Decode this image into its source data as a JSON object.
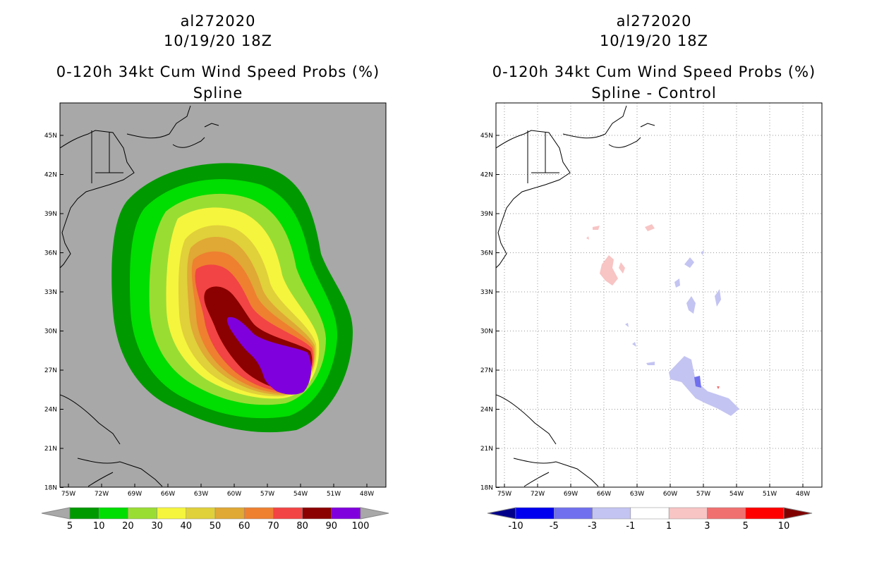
{
  "panels": [
    {
      "storm_id": "al272020",
      "datetime": "10/19/20 18Z",
      "product": "0-120h 34kt Cum Wind Speed Probs (%)",
      "subtitle": "Spline",
      "background_color": "#a8a8a8",
      "colorbar": {
        "colors": [
          "#009900",
          "#00dd00",
          "#99dd33",
          "#f5f53d",
          "#e0d03a",
          "#e0a834",
          "#ee8030",
          "#f24444",
          "#8b0000",
          "#8000dd"
        ],
        "labels": [
          "5",
          "10",
          "20",
          "30",
          "40",
          "50",
          "60",
          "70",
          "80",
          "90",
          "100"
        ],
        "under_color": "#a8a8a8",
        "over_color": "#a8a8a8"
      }
    },
    {
      "storm_id": "al272020",
      "datetime": "10/19/20 18Z",
      "product": "0-120h 34kt Cum Wind Speed Probs (%)",
      "subtitle": "Spline - Control",
      "background_color": "#ffffff",
      "colorbar": {
        "colors": [
          "#0000ee",
          "#7070ee",
          "#c4c4f2",
          "#ffffff",
          "#f8c4c4",
          "#f07070",
          "#ff0000"
        ],
        "labels": [
          "-10",
          "-5",
          "-3",
          "-1",
          "1",
          "3",
          "5",
          "10"
        ],
        "under_color": "#00008b",
        "over_color": "#800000"
      }
    }
  ],
  "map": {
    "lat_labels": [
      "45N",
      "42N",
      "39N",
      "36N",
      "33N",
      "30N",
      "27N",
      "24N",
      "21N",
      "18N"
    ],
    "lon_labels": [
      "75W",
      "72W",
      "69W",
      "66W",
      "63W",
      "60W",
      "57W",
      "54W",
      "51W",
      "48W"
    ]
  }
}
